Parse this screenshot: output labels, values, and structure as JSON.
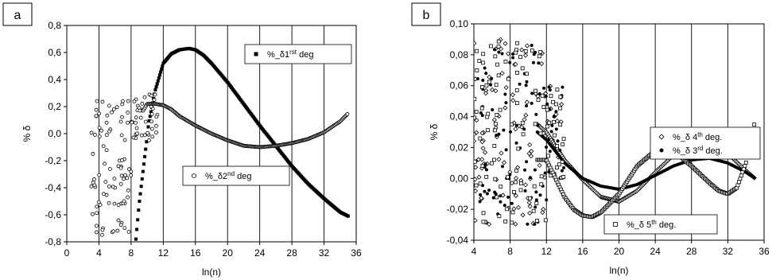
{
  "chart_data": [
    {
      "type": "scatter",
      "panel_label": "a",
      "xlabel": "ln(n)",
      "ylabel": "% δ",
      "xlim": [
        0,
        36
      ],
      "ylim": [
        -0.8,
        0.8
      ],
      "xticks": [
        "0",
        "4",
        "8",
        "12",
        "16",
        "20",
        "24",
        "28",
        "32",
        "36"
      ],
      "yticks": [
        "0,8",
        "0,6",
        "0,4",
        "0,2",
        "0,0",
        "-0,2",
        "-0,4",
        "-0,6",
        "-0,8"
      ],
      "grid": "vertical",
      "series": [
        {
          "name": "%_δ 1st deg",
          "legend_prefix": "%_δ",
          "legend_main": "1",
          "legend_sup": "rst",
          "legend_post": " deg",
          "marker": "filled-square",
          "legend_position": "top-right",
          "x": [
            8.6,
            9.0,
            9.6,
            10.2,
            11.0,
            12.0,
            13.0,
            14.0,
            15.2,
            16.0,
            17.0,
            18.0,
            20.0,
            22.0,
            24.0,
            26.0,
            28.0,
            30.0,
            32.0,
            34.0,
            35.0
          ],
          "y": [
            -0.78,
            -0.52,
            -0.22,
            0.08,
            0.32,
            0.52,
            0.59,
            0.62,
            0.63,
            0.62,
            0.58,
            0.52,
            0.38,
            0.22,
            0.06,
            -0.09,
            -0.24,
            -0.37,
            -0.48,
            -0.58,
            -0.61
          ]
        },
        {
          "name": "%_δ 2nd deg",
          "legend_prefix": "%_δ",
          "legend_main": "2",
          "legend_sup": "nd",
          "legend_post": " deg",
          "marker": "open-circle",
          "legend_position": "lower-middle",
          "x": [
            3.0,
            4.0,
            5.0,
            6.0,
            7.0,
            8.0,
            9.0,
            10.0,
            11.0,
            12.0,
            13.0,
            14.0,
            16.0,
            18.0,
            20.0,
            22.0,
            24.0,
            26.0,
            28.0,
            30.0,
            32.0,
            34.0,
            35.0
          ],
          "y": [
            0.2,
            -0.6,
            0.1,
            -0.7,
            0.2,
            -0.1,
            0.12,
            0.22,
            0.22,
            0.21,
            0.18,
            0.13,
            0.06,
            0.0,
            -0.05,
            -0.09,
            -0.1,
            -0.09,
            -0.07,
            -0.04,
            0.01,
            0.09,
            0.15
          ]
        }
      ]
    },
    {
      "type": "scatter",
      "panel_label": "b",
      "xlabel": "ln(n)",
      "ylabel": "% δ",
      "xlim": [
        4,
        36
      ],
      "ylim": [
        -0.04,
        0.1
      ],
      "xticks": [
        "4",
        "8",
        "12",
        "16",
        "20",
        "24",
        "28",
        "32",
        "36"
      ],
      "yticks": [
        "0,10",
        "0,08",
        "0,06",
        "0,04",
        "0,02",
        "0,00",
        "-0,02",
        "-0,04"
      ],
      "grid": "vertical",
      "series": [
        {
          "name": "%_δ 4th deg.",
          "legend_prefix": "%_δ",
          "legend_main": " 4",
          "legend_sup": "th",
          "legend_post": " deg.",
          "marker": "open-diamond",
          "legend_position": "right-upper",
          "x": [
            10,
            12,
            14,
            16,
            18,
            20,
            22,
            24,
            26,
            28,
            30,
            32,
            34,
            35
          ],
          "y": [
            0.04,
            0.03,
            0.012,
            -0.001,
            -0.012,
            -0.015,
            -0.008,
            0.004,
            0.015,
            0.021,
            0.022,
            0.016,
            0.005,
            0.0
          ]
        },
        {
          "name": "%_δ 3rd deg.",
          "legend_prefix": "%_δ",
          "legend_main": " 3",
          "legend_sup": "rd",
          "legend_post": " deg.",
          "marker": "filled-circle",
          "legend_position": "right-upper",
          "x": [
            10,
            12,
            14,
            16,
            18,
            20,
            22,
            24,
            26,
            28,
            30,
            32,
            34,
            35
          ],
          "y": [
            0.035,
            0.025,
            0.01,
            0.0,
            -0.005,
            -0.007,
            -0.004,
            0.002,
            0.008,
            0.012,
            0.013,
            0.01,
            0.004,
            0.0
          ]
        },
        {
          "name": "%_δ 5th deg.",
          "legend_prefix": "%_δ",
          "legend_main": " 5",
          "legend_sup": "th",
          "legend_post": " deg.",
          "marker": "open-square",
          "legend_position": "bottom-right",
          "x": [
            12,
            13,
            14,
            15,
            16,
            17,
            18,
            20,
            22,
            24,
            25,
            26,
            28,
            30,
            31,
            32,
            33,
            34,
            35
          ],
          "y": [
            0.012,
            0.0,
            -0.012,
            -0.02,
            -0.024,
            -0.025,
            -0.022,
            -0.01,
            0.008,
            0.018,
            0.02,
            0.018,
            0.008,
            -0.003,
            -0.008,
            -0.01,
            -0.006,
            0.01,
            0.037
          ]
        }
      ]
    }
  ]
}
